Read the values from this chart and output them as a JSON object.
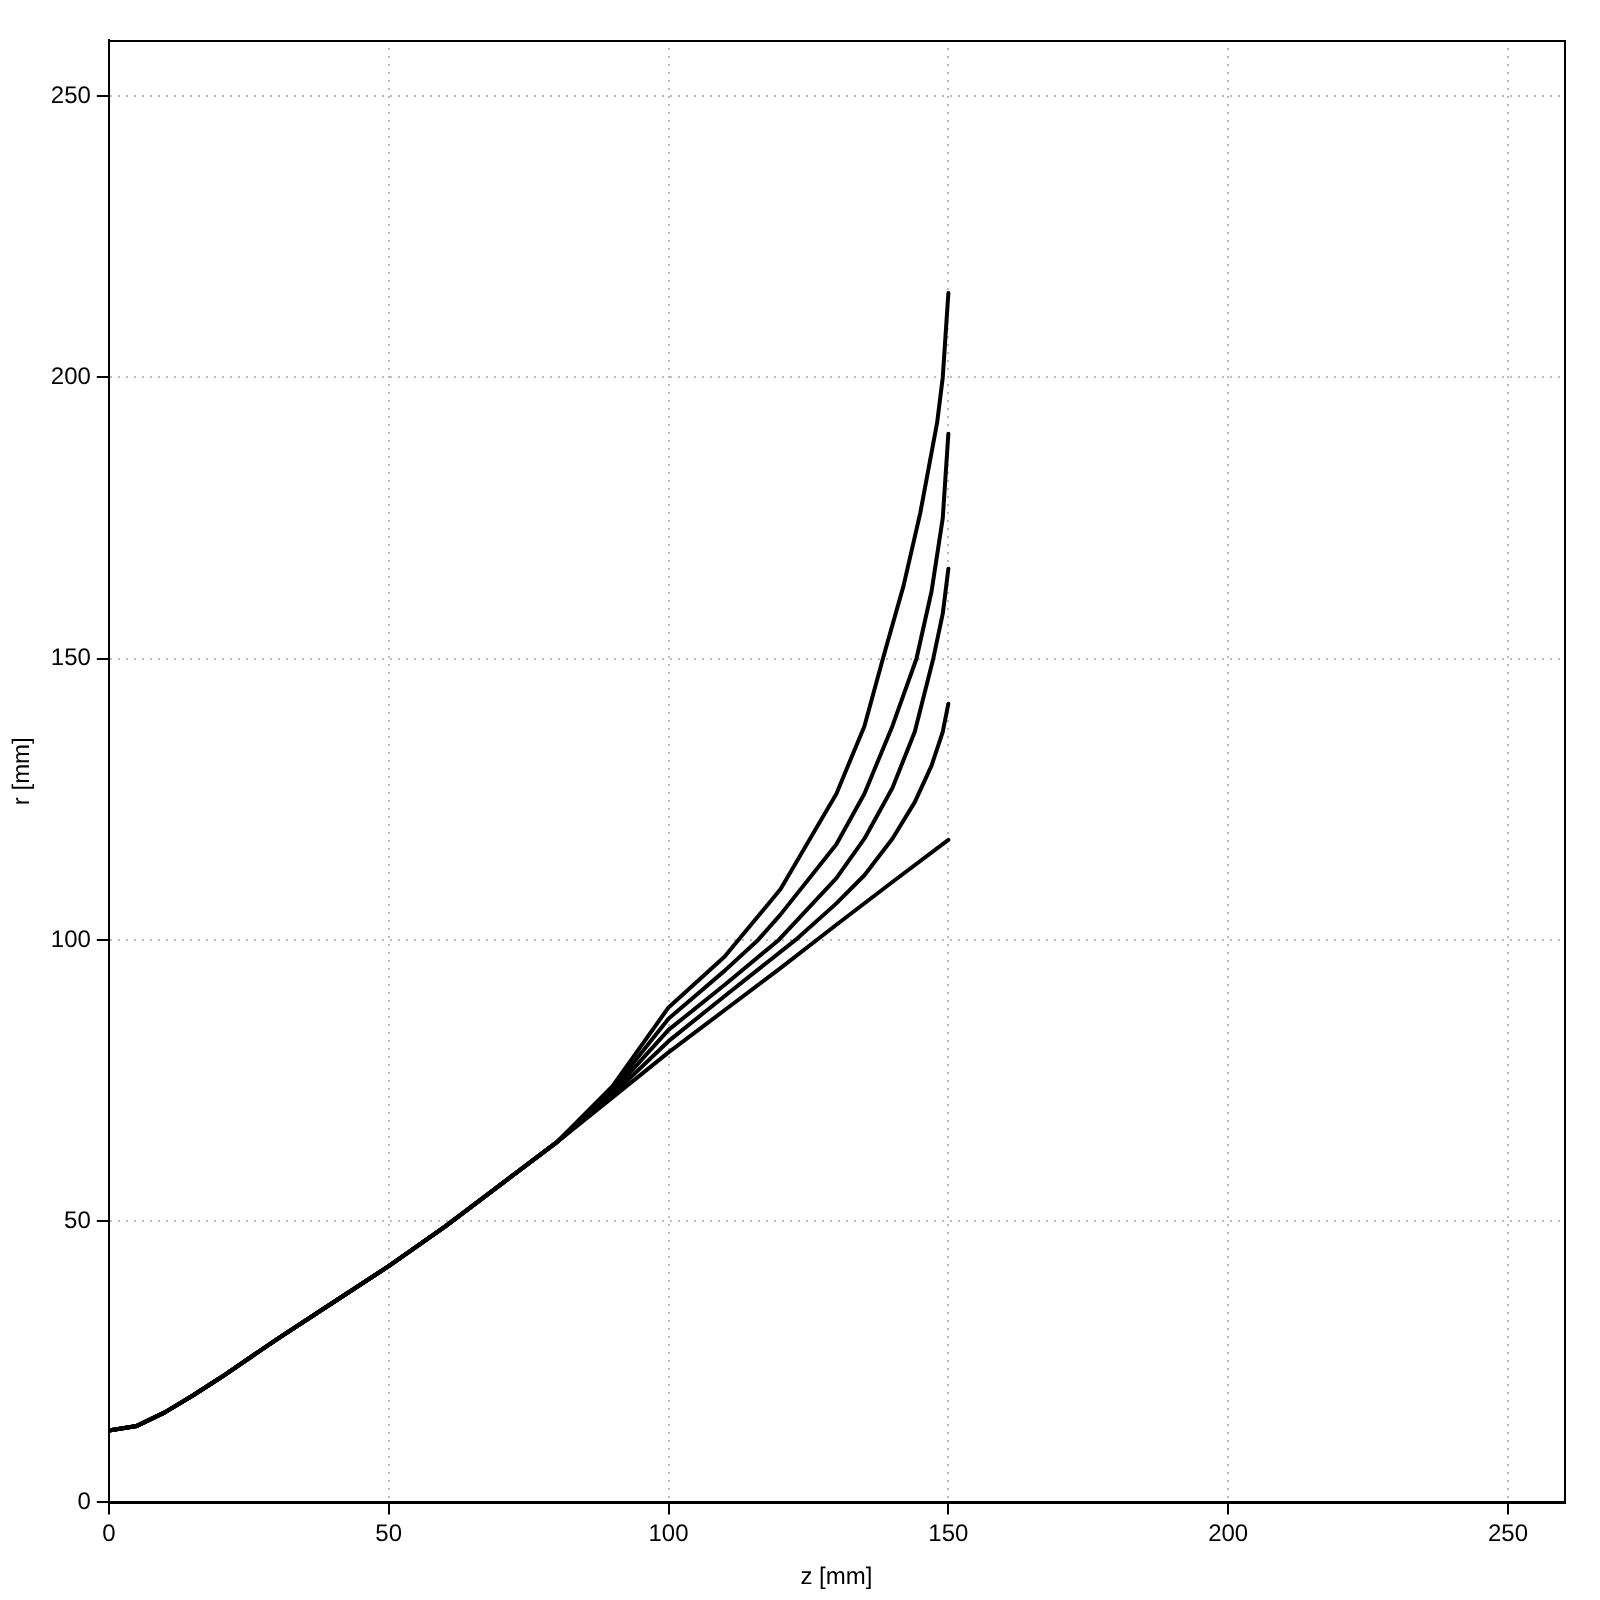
{
  "chart_data": {
    "type": "line",
    "xlabel": "z [mm]",
    "ylabel": "r [mm]",
    "xlim": [
      0,
      260
    ],
    "xticks": [
      0,
      50,
      100,
      150,
      200,
      250
    ],
    "ylim": [
      0,
      260
    ],
    "yticks": [
      0,
      50,
      100,
      150,
      200,
      250
    ],
    "grid": true,
    "legend": false,
    "marker": "none",
    "line_style": "solid",
    "series": [
      {
        "color": "#000000",
        "x": [
          0,
          5,
          10,
          15,
          20,
          30,
          40,
          50,
          60,
          70,
          80,
          90,
          100,
          110,
          120,
          130,
          135,
          138.3,
          142,
          145,
          148,
          149,
          150
        ],
        "values": [
          12.8,
          13.6,
          16,
          19,
          22.2,
          29,
          35.5,
          42,
          49,
          56.5,
          64,
          74,
          88,
          97,
          109,
          126,
          138,
          150,
          163,
          176,
          192,
          200,
          215
        ]
      },
      {
        "color": "#000000",
        "x": [
          0,
          5,
          10,
          15,
          20,
          30,
          40,
          50,
          60,
          70,
          80,
          90,
          100,
          110,
          116,
          120,
          130,
          135,
          140,
          144.3,
          147,
          149,
          150
        ],
        "values": [
          12.8,
          13.6,
          16,
          19,
          22.2,
          29,
          35.5,
          42,
          49,
          56.5,
          64,
          73.5,
          86,
          94.5,
          100,
          104.5,
          117,
          126,
          138,
          150,
          162,
          175,
          190
        ]
      },
      {
        "color": "#000000",
        "x": [
          0,
          5,
          10,
          15,
          20,
          30,
          40,
          50,
          60,
          70,
          80,
          90,
          100,
          110,
          119.7,
          130,
          135,
          140,
          144,
          147.3,
          149,
          150
        ],
        "values": [
          12.8,
          13.6,
          16,
          19,
          22.2,
          29,
          35.5,
          42,
          49,
          56.5,
          64,
          73,
          84,
          92,
          100,
          111,
          118,
          127,
          137,
          150,
          158,
          166
        ]
      },
      {
        "color": "#000000",
        "x": [
          0,
          5,
          10,
          15,
          20,
          30,
          40,
          50,
          60,
          70,
          80,
          90,
          100,
          110,
          122.7,
          130,
          135,
          140,
          144,
          147,
          149,
          150
        ],
        "values": [
          12.8,
          13.6,
          16,
          19,
          22.2,
          29,
          35.5,
          42,
          49,
          56.5,
          64,
          72.5,
          82,
          90,
          100,
          106.5,
          111.5,
          118,
          124.5,
          131,
          137,
          142
        ]
      },
      {
        "color": "#000000",
        "x": [
          0,
          5,
          10,
          15,
          20,
          30,
          40,
          50,
          60,
          70,
          80,
          90,
          100,
          110,
          120,
          130,
          140,
          150
        ],
        "values": [
          12.8,
          13.6,
          16,
          19,
          22.2,
          29,
          35.5,
          42,
          49,
          56.5,
          64,
          72,
          80,
          87.5,
          95,
          102.7,
          110.3,
          117.8
        ]
      }
    ]
  }
}
